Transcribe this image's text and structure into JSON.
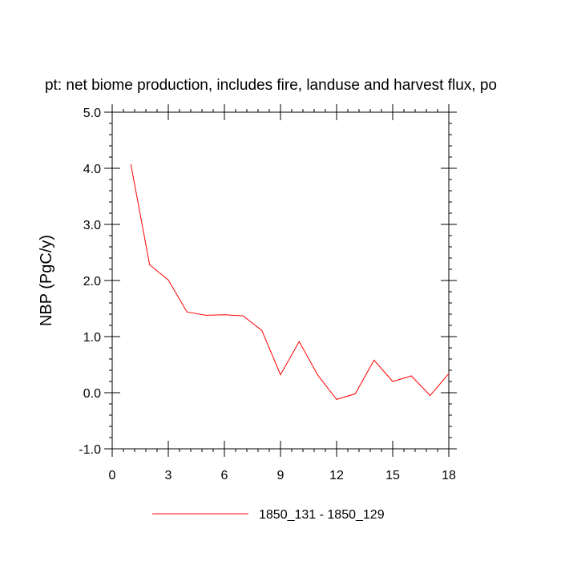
{
  "chart_data": {
    "type": "line",
    "title": "pt: net biome production, includes fire, landuse and harvest flux, po",
    "xlabel": "",
    "ylabel": "NBP  (PgC/y)",
    "xlim": [
      0,
      18
    ],
    "ylim": [
      -1.0,
      5.0
    ],
    "x_ticks": [
      0,
      3,
      6,
      9,
      12,
      15,
      18
    ],
    "x_tick_labels": [
      "0",
      "3",
      "6",
      "9",
      "12",
      "15",
      "18"
    ],
    "y_ticks": [
      -1.0,
      0.0,
      1.0,
      2.0,
      3.0,
      4.0,
      5.0
    ],
    "y_tick_labels": [
      "-1.0",
      "0.0",
      "1.0",
      "2.0",
      "3.0",
      "4.0",
      "5.0"
    ],
    "grid": false,
    "legend_position": "bottom",
    "series": [
      {
        "name": "1850_131 - 1850_129",
        "color": "#ff0000",
        "x": [
          1,
          2,
          3,
          4,
          5,
          6,
          7,
          8,
          9,
          10,
          11,
          12,
          13,
          14,
          15,
          16,
          17,
          18
        ],
        "y": [
          4.07,
          2.28,
          2.01,
          1.44,
          1.38,
          1.39,
          1.37,
          1.11,
          0.32,
          0.91,
          0.31,
          -0.12,
          -0.02,
          0.58,
          0.2,
          0.3,
          -0.05,
          0.34
        ]
      }
    ]
  }
}
